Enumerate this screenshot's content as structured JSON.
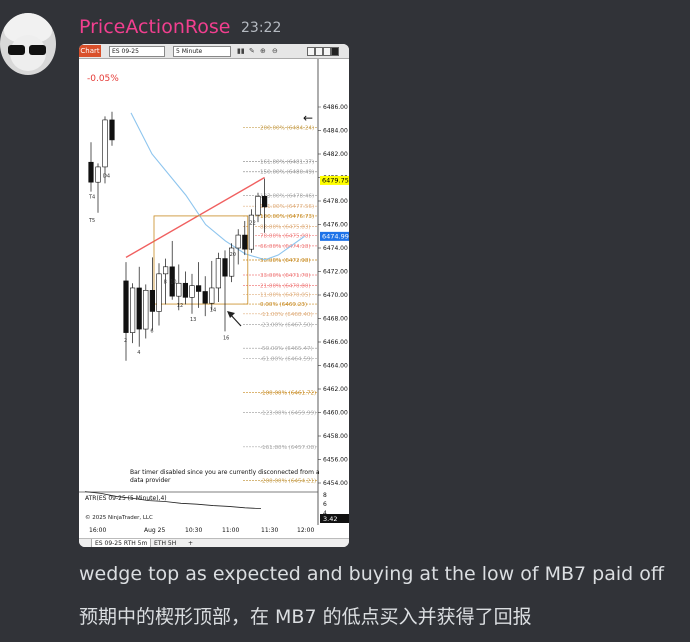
{
  "message": {
    "author": "PriceActionRose",
    "timestamp": "23:22",
    "lines": [
      "wedge top as expected and buying at the low of MB7 paid off",
      "预期中的楔形顶部，在 MB7 的低点买入并获得了回报"
    ]
  },
  "screenshot": {
    "toolbar": {
      "chart_tab": "Chart",
      "instrument": "ES 09-25",
      "interval": "5 Minute"
    },
    "change_pct": "-0.05%",
    "price_axis_labels": [
      "6486.00",
      "6484.00",
      "6482.00",
      "6480.00",
      "6478.00",
      "6476.00",
      "6474.00",
      "6472.00",
      "6470.00",
      "6468.00",
      "6466.00",
      "6464.00",
      "6462.00",
      "6460.00",
      "6458.00",
      "6456.00",
      "6454.00"
    ],
    "price_flags": {
      "last_price": "6479.75",
      "bid": "6474.99"
    },
    "fib_levels": [
      {
        "label": "200.00% (6484.24)",
        "price": 6484.24,
        "color": "#c8a050"
      },
      {
        "label": "161.80% (6481.37)",
        "price": 6481.37,
        "color": "#999999"
      },
      {
        "label": "150.00% (6480.49)",
        "price": 6480.49,
        "color": "#999999"
      },
      {
        "label": "123.00% (6478.46)",
        "price": 6478.46,
        "color": "#aaaaaa"
      },
      {
        "label": "111.00% (6477.56)",
        "price": 6477.56,
        "color": "#e0b080"
      },
      {
        "label": "100.00% (6476.73)",
        "price": 6476.73,
        "color": "#c88a20"
      },
      {
        "label": "88.00% (6475.83)",
        "price": 6475.83,
        "color": "#e0b080"
      },
      {
        "label": "78.00% (6475.08)",
        "price": 6475.08,
        "color": "#f08080"
      },
      {
        "label": "66.00% (6474.18)",
        "price": 6474.18,
        "color": "#f08080"
      },
      {
        "label": "50.00% (6472.98)",
        "price": 6472.98,
        "color": "#c88a20"
      },
      {
        "label": "33.00% (6471.70)",
        "price": 6471.7,
        "color": "#f08080"
      },
      {
        "label": "21.00% (6470.80)",
        "price": 6470.8,
        "color": "#f08080"
      },
      {
        "label": "11.00% (6470.05)",
        "price": 6470.05,
        "color": "#e0b080"
      },
      {
        "label": "0.00% (6469.23)",
        "price": 6469.23,
        "color": "#c88a20"
      },
      {
        "label": "-11.00% (6468.40)",
        "price": 6468.4,
        "color": "#e0b080"
      },
      {
        "label": "-23.00% (6467.50)",
        "price": 6467.5,
        "color": "#aaaaaa"
      },
      {
        "label": "-50.00% (6465.47)",
        "price": 6465.47,
        "color": "#aaaaaa"
      },
      {
        "label": "-61.80% (6464.59)",
        "price": 6464.59,
        "color": "#aaaaaa"
      },
      {
        "label": "-100.00% (6461.72)",
        "price": 6461.72,
        "color": "#c88a20"
      },
      {
        "label": "-123.00% (6459.99)",
        "price": 6459.99,
        "color": "#aaaaaa"
      },
      {
        "label": "-161.80% (6457.08)",
        "price": 6457.08,
        "color": "#aaaaaa"
      },
      {
        "label": "-200.00% (6454.21)",
        "price": 6454.21,
        "color": "#c8a050"
      }
    ],
    "bar_labels": [
      {
        "text": "T4",
        "price": 6478.2,
        "slot": 0
      },
      {
        "text": "T5",
        "price": 6476.2,
        "slot": 0
      },
      {
        "text": "D4",
        "price": 6480.0,
        "slot": 2
      },
      {
        "text": "2",
        "price": 6466.0,
        "slot": 4
      },
      {
        "text": "4",
        "price": 6465.0,
        "slot": 6
      },
      {
        "text": "6",
        "price": 6466.8,
        "slot": 8
      },
      {
        "text": "8",
        "price": 6471.0,
        "slot": 10
      },
      {
        "text": "10",
        "price": 6471.0,
        "slot": 11
      },
      {
        "text": "12",
        "price": 6469.0,
        "slot": 12
      },
      {
        "text": "13",
        "price": 6467.8,
        "slot": 14
      },
      {
        "text": "14",
        "price": 6468.6,
        "slot": 17
      },
      {
        "text": "16",
        "price": 6466.2,
        "slot": 19
      },
      {
        "text": "20",
        "price": 6473.3,
        "slot": 20
      },
      {
        "text": "22",
        "price": 6476.0,
        "slot": 23
      }
    ],
    "notice": "Bar timer disabled since you are currently disconnected from a data provider",
    "indicator": {
      "label": "ATR(ES 09-25 (5 Minute),4)",
      "axis_labels": [
        "8",
        "6",
        "4"
      ],
      "value": "3.42"
    },
    "copyright": "© 2025 NinjaTrader, LLC",
    "time_ticks": [
      "16:00",
      "Aug 25",
      "10:30",
      "11:00",
      "11:30",
      "12:00"
    ],
    "tabs": [
      "ES 09-25 RTH 5m",
      "ETH 5H"
    ],
    "candles": [
      {
        "o": 6481.3,
        "h": 6483.0,
        "l": 6478.8,
        "c": 6479.6
      },
      {
        "o": 6479.6,
        "h": 6481.2,
        "l": 6477.0,
        "c": 6480.9
      },
      {
        "o": 6480.9,
        "h": 6485.2,
        "l": 6479.5,
        "c": 6484.9
      },
      {
        "o": 6484.9,
        "h": 6485.6,
        "l": 6482.7,
        "c": 6483.2
      },
      {
        "o": 6471.2,
        "h": 6472.8,
        "l": 6464.4,
        "c": 6466.8
      },
      {
        "o": 6466.8,
        "h": 6471.0,
        "l": 6465.9,
        "c": 6470.6
      },
      {
        "o": 6470.6,
        "h": 6472.4,
        "l": 6465.6,
        "c": 6467.1
      },
      {
        "o": 6467.1,
        "h": 6470.9,
        "l": 6466.3,
        "c": 6470.4
      },
      {
        "o": 6470.4,
        "h": 6473.2,
        "l": 6467.0,
        "c": 6468.6
      },
      {
        "o": 6468.6,
        "h": 6472.7,
        "l": 6467.4,
        "c": 6471.8
      },
      {
        "o": 6471.8,
        "h": 6473.1,
        "l": 6469.2,
        "c": 6472.4
      },
      {
        "o": 6472.4,
        "h": 6474.6,
        "l": 6469.6,
        "c": 6469.9
      },
      {
        "o": 6469.9,
        "h": 6472.6,
        "l": 6468.7,
        "c": 6471.0
      },
      {
        "o": 6471.0,
        "h": 6472.0,
        "l": 6469.2,
        "c": 6469.8
      },
      {
        "o": 6469.8,
        "h": 6471.8,
        "l": 6468.4,
        "c": 6470.8
      },
      {
        "o": 6470.8,
        "h": 6472.8,
        "l": 6468.9,
        "c": 6470.3
      },
      {
        "o": 6470.3,
        "h": 6471.6,
        "l": 6468.2,
        "c": 6469.3
      },
      {
        "o": 6469.3,
        "h": 6472.9,
        "l": 6468.7,
        "c": 6470.6
      },
      {
        "o": 6470.6,
        "h": 6473.6,
        "l": 6469.4,
        "c": 6473.1
      },
      {
        "o": 6473.1,
        "h": 6473.8,
        "l": 6466.9,
        "c": 6471.6
      },
      {
        "o": 6471.6,
        "h": 6474.4,
        "l": 6471.1,
        "c": 6474.0
      },
      {
        "o": 6474.0,
        "h": 6475.6,
        "l": 6472.6,
        "c": 6475.1
      },
      {
        "o": 6475.1,
        "h": 6476.3,
        "l": 6473.4,
        "c": 6473.9
      },
      {
        "o": 6473.9,
        "h": 6477.3,
        "l": 6473.6,
        "c": 6476.8
      },
      {
        "o": 6476.8,
        "h": 6478.7,
        "l": 6476.2,
        "c": 6478.4
      },
      {
        "o": 6478.4,
        "h": 6479.9,
        "l": 6475.3,
        "c": 6477.5
      }
    ]
  }
}
